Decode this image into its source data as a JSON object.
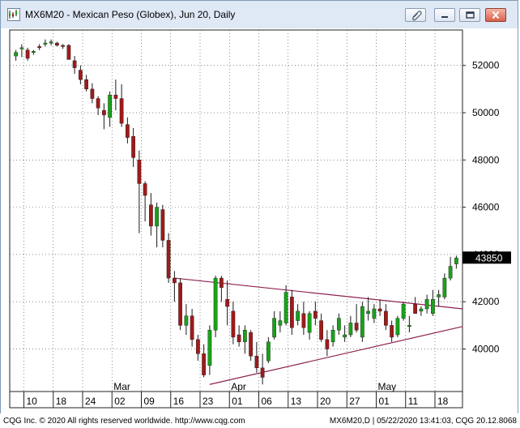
{
  "window": {
    "title": "MX6M20 - Mexican Peso (Globex), Jun 20, Daily"
  },
  "footer": {
    "left": "CQG Inc. © 2020 All rights reserved worldwide. http://www.cqg.com",
    "right": "MX6M20,D | 05/22/2020 13:41:03, CQG 20.12.8068"
  },
  "colors": {
    "up": "#19a319",
    "down": "#a01a1a",
    "trendline": "#8e2251",
    "last_price_bg": "#000000"
  },
  "chart_data": {
    "type": "candlestick",
    "title": "",
    "last_price": "43850",
    "y_ticks": [
      "52000",
      "50000",
      "48000",
      "46000",
      "44000",
      "42000",
      "40000"
    ],
    "ylim": [
      38200,
      53500
    ],
    "x_tick_labels": [
      "10",
      "18",
      "24",
      "02",
      "09",
      "16",
      "23",
      "01",
      "06",
      "13",
      "20",
      "27",
      "01",
      "11",
      "18"
    ],
    "month_labels": [
      {
        "label": "Mar",
        "after_index": 3
      },
      {
        "label": "Apr",
        "after_index": 7
      },
      {
        "label": "May",
        "after_index": 12
      }
    ],
    "grid": true,
    "trendlines": [
      {
        "name": "upper",
        "from": [
          27,
          43000
        ],
        "to": [
          69,
          41700
        ]
      },
      {
        "name": "lower",
        "from": [
          33,
          38500
        ],
        "to": [
          69,
          40950
        ]
      }
    ],
    "candles": [
      [
        52400,
        52650,
        52200,
        52550
      ],
      [
        52700,
        52900,
        52350,
        52750
      ],
      [
        52650,
        52750,
        52200,
        52300
      ],
      [
        52550,
        52650,
        52450,
        52600
      ],
      [
        52800,
        52900,
        52650,
        52750
      ],
      [
        52900,
        53100,
        52800,
        52950
      ],
      [
        52950,
        53100,
        52850,
        53000
      ],
      [
        52950,
        53000,
        52800,
        52850
      ],
      [
        52850,
        52900,
        52700,
        52800
      ],
      [
        52850,
        52900,
        52250,
        52250
      ],
      [
        52200,
        52400,
        51650,
        51900
      ],
      [
        51800,
        52000,
        51200,
        51400
      ],
      [
        51400,
        51600,
        50900,
        51000
      ],
      [
        51000,
        51250,
        50400,
        50600
      ],
      [
        50600,
        50700,
        49900,
        50200
      ],
      [
        50100,
        50400,
        49300,
        49900
      ],
      [
        49800,
        50900,
        49400,
        50750
      ],
      [
        50750,
        51400,
        50100,
        50600
      ],
      [
        50600,
        51200,
        49400,
        49550
      ],
      [
        49500,
        49800,
        48700,
        48950
      ],
      [
        49000,
        49350,
        47700,
        48100
      ],
      [
        48000,
        48400,
        44900,
        47000
      ],
      [
        47000,
        47100,
        45400,
        46500
      ],
      [
        46100,
        46600,
        44800,
        45200
      ],
      [
        45200,
        46200,
        44300,
        46000
      ],
      [
        45900,
        46100,
        44300,
        44600
      ],
      [
        44600,
        44900,
        42800,
        43000
      ],
      [
        43000,
        43300,
        42000,
        42800
      ],
      [
        42800,
        43000,
        40800,
        41000
      ],
      [
        41000,
        41900,
        40600,
        41400
      ],
      [
        41400,
        41700,
        40100,
        40400
      ],
      [
        40400,
        40600,
        39500,
        39800
      ],
      [
        39800,
        40200,
        38800,
        38900
      ],
      [
        39300,
        41000,
        38900,
        40800
      ],
      [
        40800,
        43100,
        40500,
        43000
      ],
      [
        43000,
        43100,
        42000,
        42600
      ],
      [
        42100,
        42900,
        41000,
        41800
      ],
      [
        41600,
        42000,
        40200,
        40500
      ],
      [
        40600,
        41000,
        40100,
        40300
      ],
      [
        40300,
        41000,
        39800,
        40800
      ],
      [
        40700,
        40800,
        39500,
        39700
      ],
      [
        39700,
        40300,
        39000,
        39200
      ],
      [
        39200,
        39800,
        38500,
        38800
      ],
      [
        39500,
        40500,
        39400,
        40300
      ],
      [
        40500,
        41600,
        40400,
        41300
      ],
      [
        41000,
        41600,
        40700,
        41200
      ],
      [
        41100,
        42700,
        41000,
        42400
      ],
      [
        42200,
        42500,
        40600,
        40900
      ],
      [
        41200,
        41900,
        41000,
        41600
      ],
      [
        41500,
        42000,
        40600,
        40900
      ],
      [
        40700,
        41600,
        40400,
        41500
      ],
      [
        41600,
        42000,
        41000,
        41300
      ],
      [
        41200,
        41500,
        40300,
        40400
      ],
      [
        40400,
        40800,
        39700,
        40000
      ],
      [
        40300,
        41000,
        40100,
        40800
      ],
      [
        40800,
        41500,
        40600,
        41300
      ],
      [
        40500,
        41000,
        40300,
        40600
      ],
      [
        40600,
        41400,
        40500,
        41100
      ],
      [
        41100,
        41900,
        40700,
        40800
      ],
      [
        40500,
        42000,
        40300,
        41800
      ],
      [
        41500,
        42200,
        41200,
        41600
      ],
      [
        41300,
        41900,
        41100,
        41700
      ],
      [
        41700,
        42100,
        41400,
        41600
      ],
      [
        41600,
        41900,
        40800,
        41000
      ],
      [
        41000,
        41200,
        40300,
        40500
      ],
      [
        40600,
        41400,
        40500,
        41300
      ],
      [
        41300,
        42000,
        41200,
        41900
      ],
      [
        41000,
        41400,
        40700,
        41000
      ],
      [
        41900,
        42200,
        41500,
        41500
      ],
      [
        41600,
        41800,
        41400,
        41700
      ],
      [
        41700,
        42300,
        41500,
        42100
      ],
      [
        41500,
        42500,
        41400,
        42100
      ],
      [
        42200,
        42500,
        41800,
        42300
      ],
      [
        42200,
        43200,
        42100,
        43000
      ],
      [
        43000,
        43900,
        42900,
        43500
      ],
      [
        43600,
        43950,
        43400,
        43850
      ]
    ]
  }
}
